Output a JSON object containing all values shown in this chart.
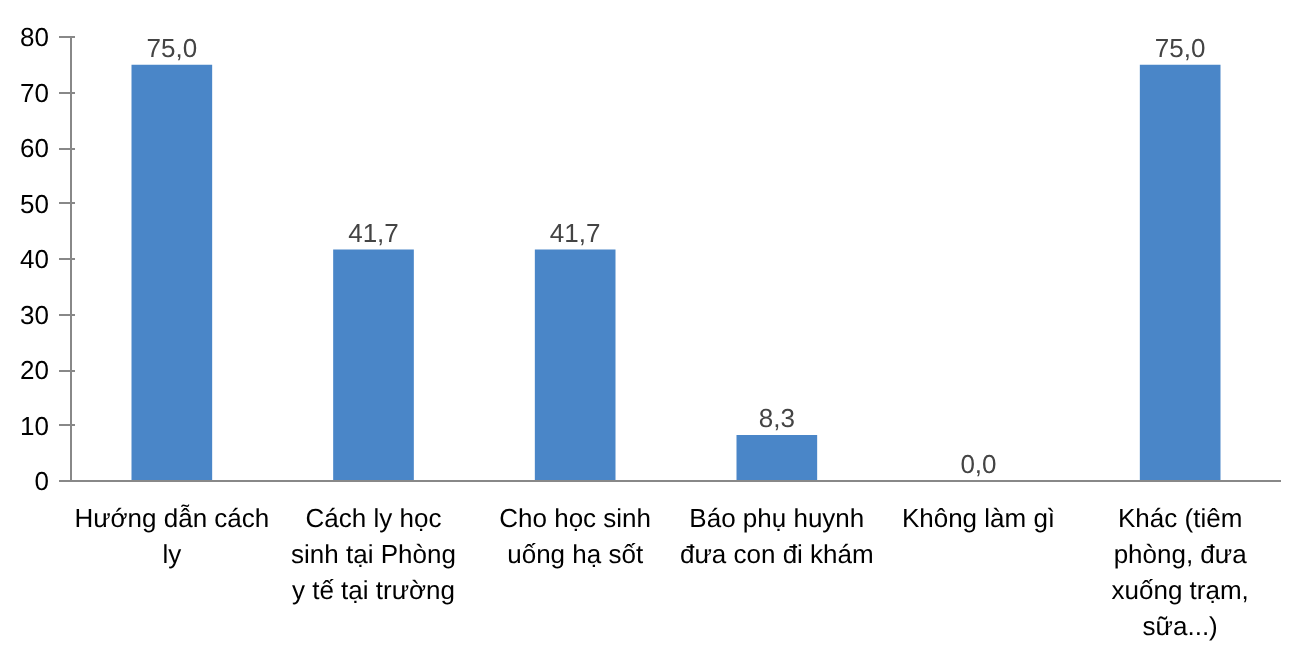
{
  "chart_data": {
    "type": "bar",
    "categories": [
      "Hướng dẫn cách ly",
      "Cách ly học sinh tại Phòng y tế tại trường",
      "Cho học sinh uống hạ sốt",
      "Báo phụ huynh đưa con đi khám",
      "Không làm gì",
      "Khác (tiêm phòng, đưa xuống trạm, sữa...)"
    ],
    "values": [
      75.0,
      41.7,
      41.7,
      8.3,
      0.0,
      75.0
    ],
    "value_labels": [
      "75,0",
      "41,7",
      "41,7",
      "8,3",
      "0,0",
      "75,0"
    ],
    "color": "#4a86c8",
    "ylim": [
      0,
      80
    ],
    "yticks": [
      0,
      10,
      20,
      30,
      40,
      50,
      60,
      70,
      80
    ],
    "grid": false
  }
}
